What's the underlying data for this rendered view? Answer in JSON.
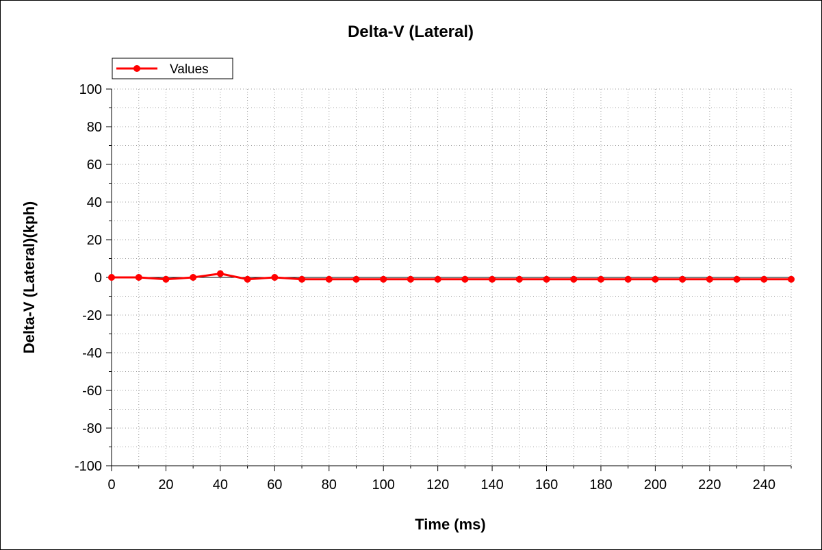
{
  "chart_data": {
    "type": "line",
    "title": "Delta-V (Lateral)",
    "xlabel": "Time (ms)",
    "ylabel": "Delta-V (Lateral)(kph)",
    "xlim": [
      0,
      250
    ],
    "ylim": [
      -100,
      100
    ],
    "x_ticks": [
      "0",
      "20",
      "40",
      "60",
      "80",
      "100",
      "120",
      "140",
      "160",
      "180",
      "200",
      "220",
      "240"
    ],
    "y_ticks": [
      "100",
      "80",
      "60",
      "40",
      "20",
      "0",
      "-20",
      "-40",
      "-60",
      "-80",
      "-100"
    ],
    "grid": true,
    "legend_position": "top-left",
    "series": [
      {
        "name": "Values",
        "color": "#ff0000",
        "x": [
          0,
          10,
          20,
          30,
          40,
          50,
          60,
          70,
          80,
          90,
          100,
          110,
          120,
          130,
          140,
          150,
          160,
          170,
          180,
          190,
          200,
          210,
          220,
          230,
          240,
          250
        ],
        "y": [
          0,
          0,
          -1,
          0,
          2,
          -1,
          0,
          -1,
          -1,
          -1,
          -1,
          -1,
          -1,
          -1,
          -1,
          -1,
          -1,
          -1,
          -1,
          -1,
          -1,
          -1,
          -1,
          -1,
          -1,
          -1
        ]
      }
    ]
  }
}
